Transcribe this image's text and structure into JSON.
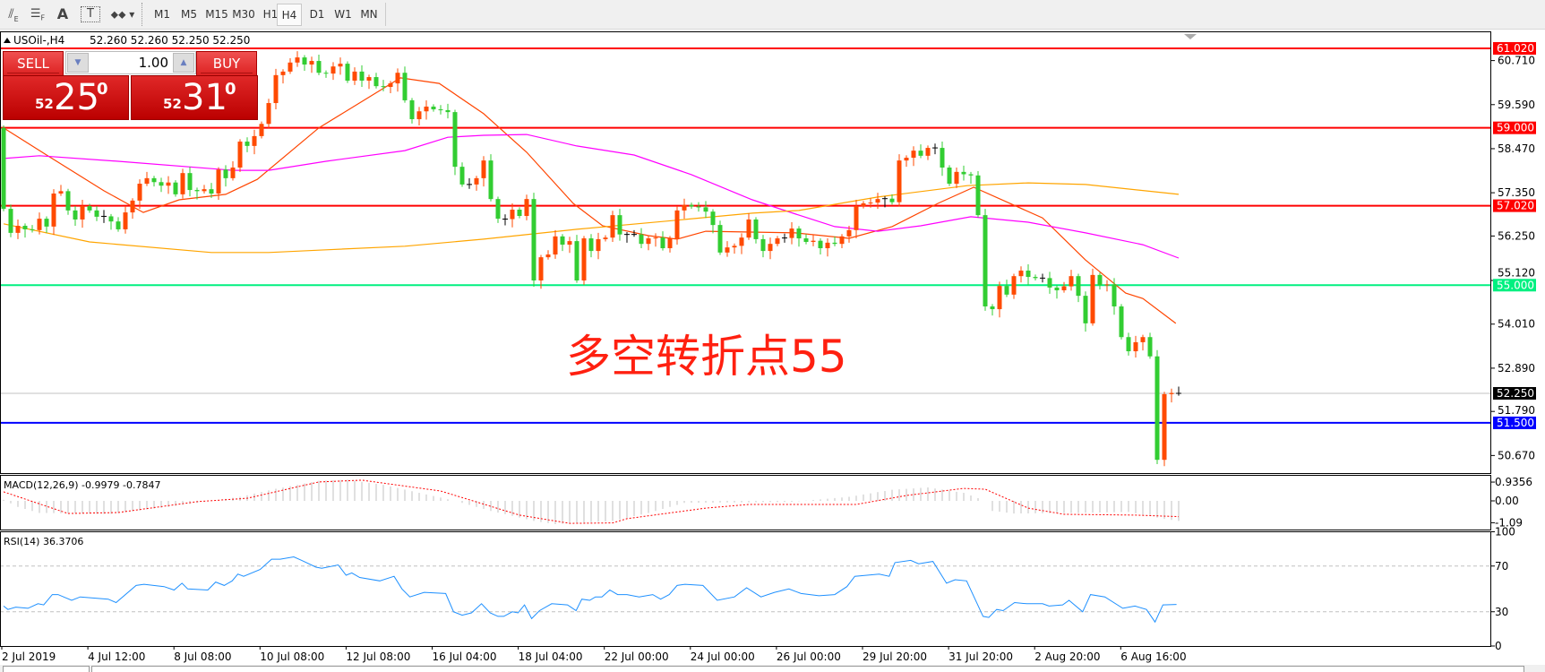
{
  "toolbar": {
    "icons": [
      "elliott-wave-icon",
      "fibonacci-icon",
      "text-icon",
      "text-label-icon",
      "arrows-icon"
    ],
    "icon_glyphs": {
      "text": "A",
      "text_label": "T"
    },
    "timeframes": [
      "M1",
      "M5",
      "M15",
      "M30",
      "H1",
      "H4",
      "D1",
      "W1",
      "MN"
    ],
    "active_timeframe": "H4"
  },
  "chart_header": {
    "symbol": "USOil-,H4",
    "ohlc": "52.260 52.260 52.250 52.250"
  },
  "trade_panel": {
    "sell_label": "SELL",
    "buy_label": "BUY",
    "lot": "1.00",
    "sell_price": {
      "prefix": "52",
      "main": "25",
      "sup": "0"
    },
    "buy_price": {
      "prefix": "52",
      "main": "31",
      "sup": "0"
    }
  },
  "annotation": "多空转折点55",
  "colors": {
    "bull": "#ff4a00",
    "bear": "#32cd32",
    "ma_fast": "#ff4500",
    "ma_mid": "#ff00ff",
    "ma_slow": "#ffa500",
    "rsi": "#1e90ff",
    "macd_hist": "#c0c0c0",
    "macd_signal": "#ff0000"
  },
  "chart_data": [
    {
      "type": "candlestick",
      "title": "USOil-,H4",
      "ylim": [
        50.45,
        61.4
      ],
      "y_ticks": [
        "60.710",
        "59.590",
        "58.470",
        "57.350",
        "56.250",
        "55.120",
        "54.010",
        "52.890",
        "51.790",
        "50.670"
      ],
      "x_ticks": [
        "2 Jul 2019",
        "4 Jul 12:00",
        "8 Jul 08:00",
        "10 Jul 08:00",
        "12 Jul 08:00",
        "16 Jul 04:00",
        "18 Jul 04:00",
        "22 Jul 00:00",
        "24 Jul 00:00",
        "26 Jul 00:00",
        "29 Jul 20:00",
        "31 Jul 20:00",
        "2 Aug 20:00",
        "6 Aug 16:00"
      ],
      "first_open": 59.0,
      "closes": [
        56.94,
        56.33,
        56.51,
        56.42,
        56.4,
        56.69,
        56.49,
        57.33,
        57.39,
        56.9,
        56.67,
        57.01,
        56.9,
        56.74,
        56.75,
        56.62,
        56.42,
        56.85,
        57.15,
        57.58,
        57.72,
        57.62,
        57.53,
        57.61,
        57.31,
        57.85,
        57.42,
        57.39,
        57.44,
        57.33,
        57.94,
        57.72,
        57.99,
        58.65,
        58.54,
        58.79,
        59.1,
        59.63,
        60.34,
        60.43,
        60.66,
        60.79,
        60.61,
        60.7,
        60.4,
        60.38,
        60.56,
        60.63,
        60.2,
        60.43,
        60.2,
        60.29,
        60.06,
        60.04,
        60.13,
        60.4,
        59.7,
        59.22,
        59.42,
        59.54,
        59.47,
        59.45,
        59.4,
        58.01,
        57.56,
        57.56,
        57.72,
        58.17,
        57.19,
        56.69,
        56.68,
        56.92,
        56.76,
        57.19,
        55.12,
        55.71,
        55.78,
        56.24,
        56.03,
        56.12,
        55.12,
        56.19,
        55.87,
        56.17,
        56.21,
        56.78,
        56.29,
        56.29,
        56.29,
        56.05,
        56.19,
        56.21,
        55.94,
        56.19,
        56.9,
        57.04,
        57.0,
        56.98,
        56.87,
        56.53,
        55.83,
        55.96,
        56.0,
        56.21,
        56.67,
        56.17,
        55.87,
        56.05,
        56.19,
        56.2,
        56.44,
        56.19,
        56.1,
        56.13,
        55.94,
        56.08,
        56.05,
        56.24,
        56.4,
        57.01,
        57.08,
        57.1,
        57.19,
        57.2,
        57.11,
        58.17,
        58.24,
        58.42,
        58.29,
        58.49,
        58.49,
        57.99,
        57.58,
        57.88,
        57.82,
        57.79,
        56.78,
        54.46,
        54.39,
        54.98,
        54.76,
        55.23,
        55.37,
        55.21,
        55.18,
        55.18,
        54.94,
        54.87,
        54.97,
        55.23,
        54.73,
        54.03,
        55.26,
        55.0,
        55.02,
        54.46,
        53.68,
        53.32,
        53.55,
        53.68,
        53.19,
        50.56,
        52.23,
        52.26,
        52.25
      ],
      "moving_averages": [
        {
          "color_key": "ma_fast",
          "points": [
            [
              0,
              59.0
            ],
            [
              6,
              58.31
            ],
            [
              14,
              57.4
            ],
            [
              19.5,
              56.85
            ],
            [
              24.5,
              57.17
            ],
            [
              31,
              57.31
            ],
            [
              35.4,
              57.69
            ],
            [
              44,
              59.0
            ],
            [
              55.4,
              60.27
            ],
            [
              60.8,
              60.13
            ],
            [
              67,
              59.36
            ],
            [
              73,
              58.38
            ],
            [
              79.5,
              57.08
            ],
            [
              83.6,
              56.51
            ],
            [
              90,
              56.26
            ],
            [
              94,
              56.17
            ],
            [
              98,
              56.37
            ],
            [
              110.5,
              56.33
            ],
            [
              118,
              56.19
            ],
            [
              124,
              56.49
            ],
            [
              130.4,
              57.08
            ],
            [
              135.4,
              57.49
            ],
            [
              145,
              56.71
            ],
            [
              151,
              55.64
            ],
            [
              156.6,
              54.8
            ],
            [
              159,
              54.66
            ],
            [
              163.6,
              54.03
            ]
          ]
        },
        {
          "color_key": "ma_mid",
          "points": [
            [
              0,
              58.22
            ],
            [
              5,
              58.29
            ],
            [
              16,
              58.15
            ],
            [
              32,
              57.92
            ],
            [
              37,
              57.92
            ],
            [
              45,
              58.15
            ],
            [
              56,
              58.42
            ],
            [
              62,
              58.76
            ],
            [
              67,
              58.81
            ],
            [
              73,
              58.83
            ],
            [
              80,
              58.54
            ],
            [
              88,
              58.31
            ],
            [
              96,
              57.81
            ],
            [
              104.5,
              57.17
            ],
            [
              111,
              56.78
            ],
            [
              116,
              56.49
            ],
            [
              122,
              56.37
            ],
            [
              128,
              56.51
            ],
            [
              135,
              56.74
            ],
            [
              143,
              56.6
            ],
            [
              151,
              56.33
            ],
            [
              159,
              56.03
            ],
            [
              164,
              55.69
            ]
          ]
        },
        {
          "color_key": "ma_slow",
          "points": [
            [
              0,
              56.56
            ],
            [
              12,
              56.1
            ],
            [
              29,
              55.83
            ],
            [
              37,
              55.83
            ],
            [
              45,
              55.9
            ],
            [
              56,
              55.99
            ],
            [
              67,
              56.17
            ],
            [
              80,
              56.42
            ],
            [
              92,
              56.62
            ],
            [
              104.5,
              56.83
            ],
            [
              111,
              56.9
            ],
            [
              122,
              57.24
            ],
            [
              134.5,
              57.53
            ],
            [
              143,
              57.6
            ],
            [
              151,
              57.56
            ],
            [
              164,
              57.31
            ]
          ]
        }
      ],
      "horizontal_lines": [
        {
          "price": 61.02,
          "label": "61.020",
          "color": "#ff0000"
        },
        {
          "price": 59.0,
          "label": "59.000",
          "color": "#ff0000"
        },
        {
          "price": 57.02,
          "label": "57.020",
          "color": "#ff0000"
        },
        {
          "price": 55.0,
          "label": "55.000",
          "color": "#00f080"
        },
        {
          "price": 51.5,
          "label": "51.500",
          "color": "#0000ff"
        }
      ],
      "current_price": {
        "price": 52.25,
        "label": "52.250",
        "color": "#000000"
      }
    },
    {
      "type": "bar+line",
      "title": "MACD(12,26,9) -0.9979 -0.7847",
      "y_ticks": [
        "0.9356",
        "0.00",
        "-1.09"
      ],
      "macd": [
        [
          0,
          0.05
        ],
        [
          2,
          -0.3
        ],
        [
          5,
          -0.6
        ],
        [
          15,
          -0.65
        ],
        [
          23,
          -0.3
        ],
        [
          28,
          -0.05
        ],
        [
          33,
          0.2
        ],
        [
          38,
          0.6
        ],
        [
          44,
          1.0
        ],
        [
          48,
          1.05
        ],
        [
          53,
          0.8
        ],
        [
          58,
          0.4
        ],
        [
          63,
          0.0
        ],
        [
          68,
          -0.5
        ],
        [
          74,
          -1.0
        ],
        [
          77,
          -1.16
        ],
        [
          85,
          -1.0
        ],
        [
          90,
          -0.6
        ],
        [
          95,
          -0.1
        ],
        [
          110,
          -0.05
        ],
        [
          118,
          0.2
        ],
        [
          124,
          0.55
        ],
        [
          129,
          0.67
        ],
        [
          134,
          0.4
        ],
        [
          137,
          0.0
        ],
        [
          138,
          -0.5
        ],
        [
          141,
          -0.63
        ],
        [
          150,
          -0.6
        ],
        [
          157,
          -0.55
        ],
        [
          162,
          -0.9
        ],
        [
          164,
          -0.9979
        ]
      ],
      "signal": [
        [
          0,
          0.45
        ],
        [
          9,
          -0.63
        ],
        [
          16,
          -0.58
        ],
        [
          27,
          -0.04
        ],
        [
          34,
          0.13
        ],
        [
          44,
          0.94
        ],
        [
          50,
          1.03
        ],
        [
          61,
          0.49
        ],
        [
          72,
          -0.71
        ],
        [
          79,
          -1.12
        ],
        [
          85,
          -1.1
        ],
        [
          87,
          -0.89
        ],
        [
          98,
          -0.36
        ],
        [
          104,
          -0.18
        ],
        [
          119,
          -0.18
        ],
        [
          126,
          0.27
        ],
        [
          134,
          0.62
        ],
        [
          137,
          0.58
        ],
        [
          143,
          -0.36
        ],
        [
          148,
          -0.67
        ],
        [
          158,
          -0.71
        ],
        [
          164,
          -0.7847
        ]
      ]
    },
    {
      "type": "line",
      "title": "RSI(14) 36.3706",
      "ylim": [
        0,
        100
      ],
      "y_ticks": [
        "100",
        "70",
        "30",
        "0"
      ],
      "levels": [
        70,
        30
      ],
      "values": [
        [
          0,
          35
        ],
        [
          0.6,
          32
        ],
        [
          1.7,
          34
        ],
        [
          3.4,
          33
        ],
        [
          4.8,
          37
        ],
        [
          5.6,
          36
        ],
        [
          6.8,
          45
        ],
        [
          7.6,
          45
        ],
        [
          9.5,
          40
        ],
        [
          10.7,
          43
        ],
        [
          14.6,
          41
        ],
        [
          15.7,
          38
        ],
        [
          18.5,
          53
        ],
        [
          19.6,
          54
        ],
        [
          22.4,
          52
        ],
        [
          23.8,
          49
        ],
        [
          24.9,
          55
        ],
        [
          25.7,
          50
        ],
        [
          28.5,
          49
        ],
        [
          29.6,
          56
        ],
        [
          30.8,
          53
        ],
        [
          31.9,
          57
        ],
        [
          32.7,
          63
        ],
        [
          33.5,
          61
        ],
        [
          35.8,
          67
        ],
        [
          37.4,
          76
        ],
        [
          38.6,
          76
        ],
        [
          40.5,
          78
        ],
        [
          41.6,
          75
        ],
        [
          43.6,
          69
        ],
        [
          44.4,
          68
        ],
        [
          46.7,
          71
        ],
        [
          47.8,
          62
        ],
        [
          48.6,
          64
        ],
        [
          49.7,
          60
        ],
        [
          52.5,
          57
        ],
        [
          54.5,
          61
        ],
        [
          55.6,
          50
        ],
        [
          56.7,
          43
        ],
        [
          58.7,
          47
        ],
        [
          61.7,
          46
        ],
        [
          62.8,
          30
        ],
        [
          64,
          27
        ],
        [
          65.3,
          29
        ],
        [
          66.7,
          37
        ],
        [
          67.9,
          29
        ],
        [
          69,
          26
        ],
        [
          69.8,
          26
        ],
        [
          71,
          30
        ],
        [
          71.8,
          29
        ],
        [
          72.7,
          36
        ],
        [
          73.7,
          24
        ],
        [
          74.8,
          31
        ],
        [
          76.5,
          37
        ],
        [
          78.7,
          36
        ],
        [
          79.9,
          31
        ],
        [
          80.7,
          41
        ],
        [
          81.8,
          40
        ],
        [
          82.6,
          43
        ],
        [
          83.5,
          43
        ],
        [
          84.6,
          49
        ],
        [
          85.7,
          45
        ],
        [
          87,
          45
        ],
        [
          88.7,
          43
        ],
        [
          90.6,
          45
        ],
        [
          91.7,
          41
        ],
        [
          92.9,
          45
        ],
        [
          94,
          53
        ],
        [
          95.1,
          54
        ],
        [
          97.6,
          53
        ],
        [
          99.6,
          40
        ],
        [
          102,
          43
        ],
        [
          103.7,
          51
        ],
        [
          105.7,
          43
        ],
        [
          107.6,
          47
        ],
        [
          109.6,
          50
        ],
        [
          111.3,
          46
        ],
        [
          113.8,
          44
        ],
        [
          116,
          45
        ],
        [
          117.7,
          52
        ],
        [
          118.8,
          61
        ],
        [
          122.2,
          63
        ],
        [
          123.6,
          61
        ],
        [
          124.4,
          73
        ],
        [
          126.6,
          75
        ],
        [
          127.7,
          72
        ],
        [
          129.7,
          74
        ],
        [
          131.6,
          55
        ],
        [
          132.8,
          58
        ],
        [
          134.4,
          57
        ],
        [
          136.7,
          26
        ],
        [
          137.5,
          25
        ],
        [
          138.6,
          32
        ],
        [
          139.5,
          31
        ],
        [
          141.1,
          38
        ],
        [
          142.8,
          37
        ],
        [
          145,
          37
        ],
        [
          145.9,
          35
        ],
        [
          147.8,
          36
        ],
        [
          148.7,
          40
        ],
        [
          150.6,
          30
        ],
        [
          151.7,
          45
        ],
        [
          153.7,
          43
        ],
        [
          156.2,
          33
        ],
        [
          157.9,
          35
        ],
        [
          159.5,
          32
        ],
        [
          160.7,
          21
        ],
        [
          161.8,
          36
        ],
        [
          163.7,
          36.37
        ]
      ]
    }
  ]
}
